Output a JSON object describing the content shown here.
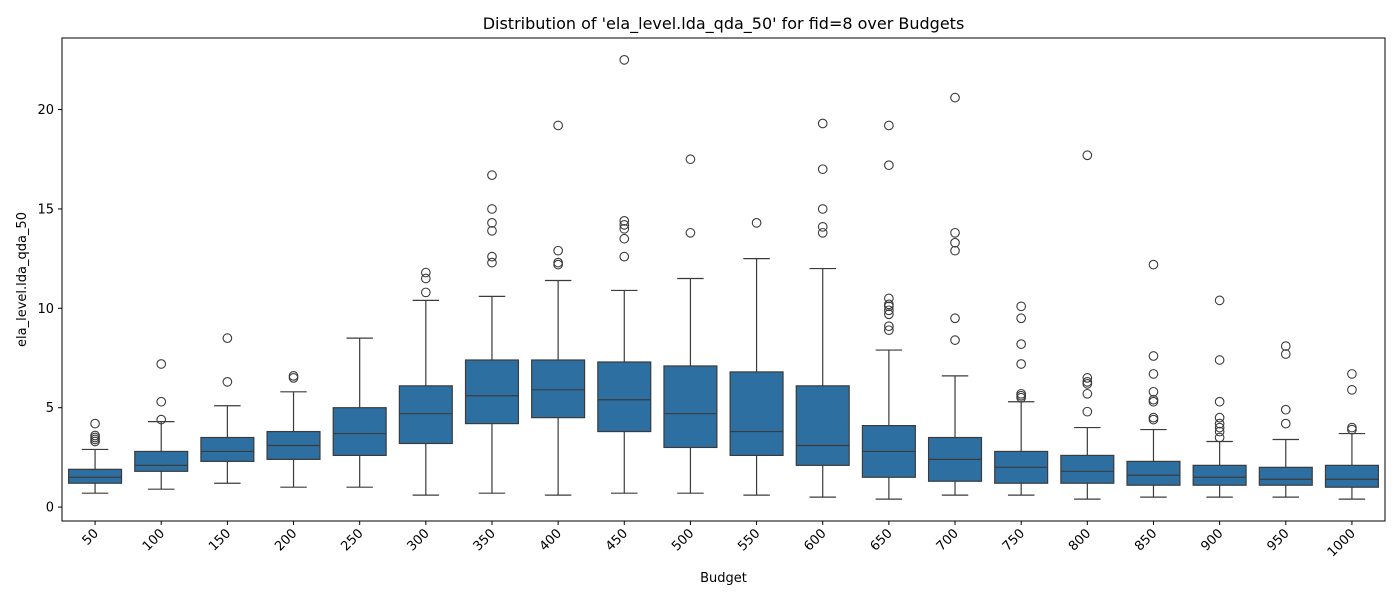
{
  "chart_data": {
    "type": "box",
    "title": "Distribution of 'ela_level.lda_qda_50' for fid=8 over Budgets",
    "xlabel": "Budget",
    "ylabel": "ela_level.lda_qda_50",
    "ylim": [
      -0.7,
      23.6
    ],
    "yticks": [
      0,
      5,
      10,
      15,
      20
    ],
    "ytick_labels": [
      "0",
      "5",
      "10",
      "15",
      "20"
    ],
    "grid": false,
    "legend": "none",
    "colors": {
      "box_fill": "#2e6fa2",
      "line": "#3b3b3b",
      "outlier": "#3b3b3b"
    },
    "categories": [
      "50",
      "100",
      "150",
      "200",
      "250",
      "300",
      "350",
      "400",
      "450",
      "500",
      "550",
      "600",
      "650",
      "700",
      "750",
      "800",
      "850",
      "900",
      "950",
      "1000"
    ],
    "boxes": [
      {
        "q1": 1.2,
        "median": 1.5,
        "q3": 1.9,
        "whisker_low": 0.7,
        "whisker_high": 2.9,
        "outliers": [
          3.3,
          3.4,
          3.5,
          3.6,
          4.2
        ]
      },
      {
        "q1": 1.8,
        "median": 2.1,
        "q3": 2.8,
        "whisker_low": 0.9,
        "whisker_high": 4.3,
        "outliers": [
          4.4,
          5.3,
          7.2
        ]
      },
      {
        "q1": 2.3,
        "median": 2.8,
        "q3": 3.5,
        "whisker_low": 1.2,
        "whisker_high": 5.1,
        "outliers": [
          6.3,
          8.5
        ]
      },
      {
        "q1": 2.4,
        "median": 3.1,
        "q3": 3.8,
        "whisker_low": 1.0,
        "whisker_high": 5.8,
        "outliers": [
          6.5,
          6.6
        ]
      },
      {
        "q1": 2.6,
        "median": 3.7,
        "q3": 5.0,
        "whisker_low": 1.0,
        "whisker_high": 8.5,
        "outliers": []
      },
      {
        "q1": 3.2,
        "median": 4.7,
        "q3": 6.1,
        "whisker_low": 0.6,
        "whisker_high": 10.4,
        "outliers": [
          10.8,
          11.5,
          11.8
        ]
      },
      {
        "q1": 4.2,
        "median": 5.6,
        "q3": 7.4,
        "whisker_low": 0.7,
        "whisker_high": 10.6,
        "outliers": [
          12.3,
          12.6,
          13.9,
          14.3,
          15.0,
          16.7
        ]
      },
      {
        "q1": 4.5,
        "median": 5.9,
        "q3": 7.4,
        "whisker_low": 0.6,
        "whisker_high": 11.4,
        "outliers": [
          12.2,
          12.3,
          12.9,
          19.2
        ]
      },
      {
        "q1": 3.8,
        "median": 5.4,
        "q3": 7.3,
        "whisker_low": 0.7,
        "whisker_high": 10.9,
        "outliers": [
          12.6,
          13.5,
          14.0,
          14.2,
          14.4,
          22.5
        ]
      },
      {
        "q1": 3.0,
        "median": 4.7,
        "q3": 7.1,
        "whisker_low": 0.7,
        "whisker_high": 11.5,
        "outliers": [
          13.8,
          17.5
        ]
      },
      {
        "q1": 2.6,
        "median": 3.8,
        "q3": 6.8,
        "whisker_low": 0.6,
        "whisker_high": 12.5,
        "outliers": [
          14.3
        ]
      },
      {
        "q1": 2.1,
        "median": 3.1,
        "q3": 6.1,
        "whisker_low": 0.5,
        "whisker_high": 12.0,
        "outliers": [
          13.8,
          14.1,
          15.0,
          17.0,
          19.3
        ]
      },
      {
        "q1": 1.5,
        "median": 2.8,
        "q3": 4.1,
        "whisker_low": 0.4,
        "whisker_high": 7.9,
        "outliers": [
          8.9,
          9.1,
          9.7,
          9.9,
          10.1,
          10.2,
          10.5,
          17.2,
          19.2
        ]
      },
      {
        "q1": 1.3,
        "median": 2.4,
        "q3": 3.5,
        "whisker_low": 0.6,
        "whisker_high": 6.6,
        "outliers": [
          8.4,
          9.5,
          12.9,
          13.3,
          13.8,
          20.6
        ]
      },
      {
        "q1": 1.2,
        "median": 2.0,
        "q3": 2.8,
        "whisker_low": 0.6,
        "whisker_high": 5.3,
        "outliers": [
          5.5,
          5.6,
          5.7,
          7.2,
          8.2,
          9.5,
          10.1
        ]
      },
      {
        "q1": 1.2,
        "median": 1.8,
        "q3": 2.6,
        "whisker_low": 0.4,
        "whisker_high": 4.0,
        "outliers": [
          4.8,
          5.7,
          6.2,
          6.3,
          6.5,
          17.7
        ]
      },
      {
        "q1": 1.1,
        "median": 1.6,
        "q3": 2.3,
        "whisker_low": 0.5,
        "whisker_high": 3.9,
        "outliers": [
          4.4,
          4.5,
          5.3,
          5.4,
          5.8,
          6.7,
          7.6,
          12.2
        ]
      },
      {
        "q1": 1.1,
        "median": 1.5,
        "q3": 2.1,
        "whisker_low": 0.5,
        "whisker_high": 3.3,
        "outliers": [
          3.5,
          3.8,
          4.0,
          4.2,
          4.5,
          5.3,
          7.4,
          10.4
        ]
      },
      {
        "q1": 1.1,
        "median": 1.4,
        "q3": 2.0,
        "whisker_low": 0.5,
        "whisker_high": 3.4,
        "outliers": [
          4.2,
          4.9,
          7.7,
          8.1
        ]
      },
      {
        "q1": 1.0,
        "median": 1.4,
        "q3": 2.1,
        "whisker_low": 0.4,
        "whisker_high": 3.7,
        "outliers": [
          3.9,
          4.0,
          5.9,
          6.7
        ]
      }
    ]
  }
}
